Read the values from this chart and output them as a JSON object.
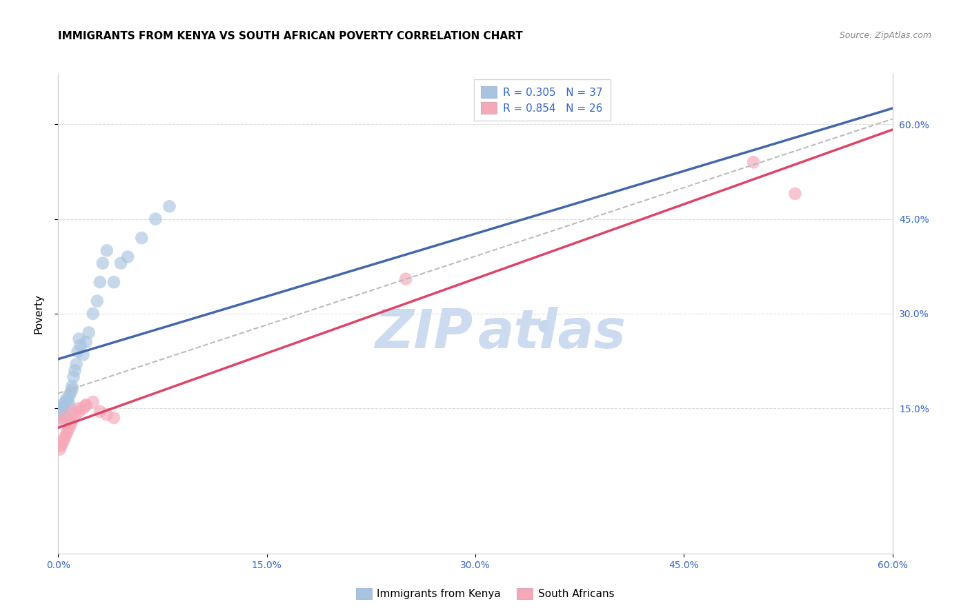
{
  "title": "IMMIGRANTS FROM KENYA VS SOUTH AFRICAN POVERTY CORRELATION CHART",
  "source": "Source: ZipAtlas.com",
  "ylabel": "Poverty",
  "legend_r1": "0.305",
  "legend_n1": "37",
  "legend_r2": "0.854",
  "legend_n2": "26",
  "legend_label1": "Immigrants from Kenya",
  "legend_label2": "South Africans",
  "blue_scatter_color": "#A8C4E0",
  "pink_scatter_color": "#F5A8B8",
  "blue_line_color": "#4466AA",
  "pink_line_color": "#DD4466",
  "dashed_line_color": "#BBBBBB",
  "text_blue": "#3366CC",
  "watermark_color": "#C8D8F0",
  "background_color": "#FFFFFF",
  "grid_color": "#DDDDDD",
  "kenya_x": [
    0.001,
    0.001,
    0.002,
    0.002,
    0.003,
    0.003,
    0.004,
    0.005,
    0.005,
    0.006,
    0.007,
    0.008,
    0.008,
    0.009,
    0.01,
    0.01,
    0.011,
    0.012,
    0.013,
    0.014,
    0.015,
    0.016,
    0.018,
    0.02,
    0.022,
    0.025,
    0.028,
    0.03,
    0.032,
    0.035,
    0.04,
    0.045,
    0.05,
    0.06,
    0.07,
    0.08,
    0.35
  ],
  "kenya_y": [
    0.135,
    0.14,
    0.145,
    0.15,
    0.155,
    0.148,
    0.152,
    0.138,
    0.16,
    0.165,
    0.162,
    0.155,
    0.17,
    0.175,
    0.18,
    0.185,
    0.2,
    0.21,
    0.22,
    0.24,
    0.26,
    0.25,
    0.235,
    0.255,
    0.27,
    0.3,
    0.32,
    0.35,
    0.38,
    0.4,
    0.35,
    0.38,
    0.39,
    0.42,
    0.45,
    0.47,
    0.28
  ],
  "sa_x": [
    0.001,
    0.002,
    0.003,
    0.004,
    0.005,
    0.006,
    0.007,
    0.008,
    0.009,
    0.01,
    0.012,
    0.015,
    0.018,
    0.02,
    0.025,
    0.03,
    0.035,
    0.04,
    0.003,
    0.005,
    0.01,
    0.015,
    0.02,
    0.25,
    0.5,
    0.53
  ],
  "sa_y": [
    0.085,
    0.09,
    0.095,
    0.1,
    0.105,
    0.11,
    0.115,
    0.12,
    0.125,
    0.13,
    0.14,
    0.145,
    0.15,
    0.155,
    0.16,
    0.145,
    0.14,
    0.135,
    0.13,
    0.135,
    0.145,
    0.15,
    0.155,
    0.355,
    0.54,
    0.49
  ],
  "xlim": [
    0.0,
    0.6
  ],
  "ylim": [
    -0.08,
    0.68
  ],
  "xtick_positions": [
    0.0,
    0.15,
    0.3,
    0.45,
    0.6
  ],
  "xtick_labels": [
    "0.0%",
    "15.0%",
    "30.0%",
    "45.0%",
    "60.0%"
  ],
  "ytick_positions": [
    0.15,
    0.3,
    0.45,
    0.6
  ],
  "ytick_labels": [
    "15.0%",
    "30.0%",
    "45.0%",
    "60.0%"
  ]
}
